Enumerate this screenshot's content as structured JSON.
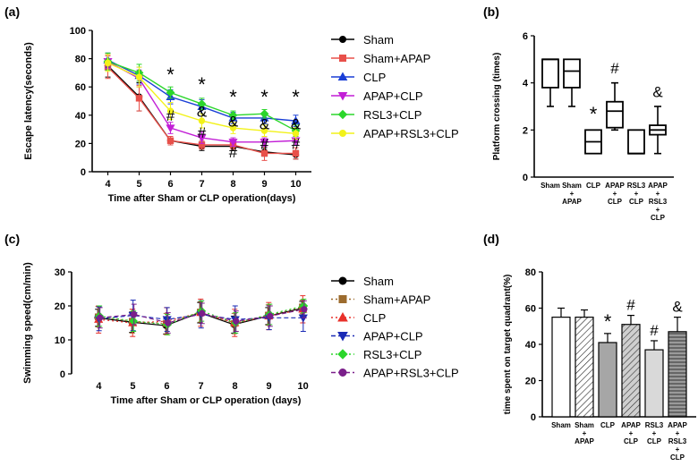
{
  "chart_data": [
    {
      "panel": "(a)",
      "type": "line",
      "xlabel": "Time after Sham or CLP operation(days)",
      "ylabel": "Escape latency(seconds)",
      "xlim": [
        3.5,
        10.5
      ],
      "ylim": [
        0,
        100
      ],
      "x": [
        4,
        5,
        6,
        7,
        8,
        9,
        10
      ],
      "yticks": [
        0,
        20,
        40,
        60,
        80,
        100
      ],
      "series": [
        {
          "name": "Sham",
          "color": "#000000",
          "marker": "circle",
          "values": [
            75,
            53,
            22,
            18,
            18,
            14,
            12
          ],
          "errors": [
            8,
            10,
            3,
            3,
            3,
            3,
            3
          ]
        },
        {
          "name": "Sham+APAP",
          "color": "#e8504a",
          "marker": "square",
          "values": [
            74,
            52,
            22,
            19,
            19,
            13,
            13
          ],
          "errors": [
            8,
            9,
            3,
            3,
            3,
            5,
            4
          ]
        },
        {
          "name": "CLP",
          "color": "#1a3fd6",
          "marker": "triangle-up",
          "values": [
            79,
            68,
            53,
            46,
            38,
            38,
            36
          ],
          "errors": [
            5,
            6,
            5,
            5,
            4,
            4,
            4
          ]
        },
        {
          "name": "APAP+CLP",
          "color": "#c21fd6",
          "marker": "triangle-down",
          "values": [
            78,
            66,
            31,
            24,
            21,
            21,
            22
          ],
          "errors": [
            5,
            6,
            4,
            4,
            3,
            3,
            3
          ]
        },
        {
          "name": "RSL3+CLP",
          "color": "#2bd62b",
          "marker": "diamond",
          "values": [
            78,
            70,
            56,
            48,
            40,
            41,
            29
          ],
          "errors": [
            6,
            6,
            4,
            4,
            3,
            3,
            4
          ]
        },
        {
          "name": "APAP+RSL3+CLP",
          "color": "#f2f21a",
          "marker": "circle",
          "values": [
            77,
            67,
            43,
            36,
            31,
            29,
            27
          ],
          "errors": [
            6,
            7,
            6,
            5,
            4,
            4,
            4
          ]
        }
      ],
      "annotations": [
        {
          "text": "*",
          "x": 6,
          "y": 64
        },
        {
          "text": "*",
          "x": 7,
          "y": 57
        },
        {
          "text": "*",
          "x": 8,
          "y": 48
        },
        {
          "text": "*",
          "x": 9,
          "y": 48
        },
        {
          "text": "*",
          "x": 10,
          "y": 48
        },
        {
          "text": "#",
          "x": 6,
          "y": 36
        },
        {
          "text": "&",
          "x": 7,
          "y": 39
        },
        {
          "text": "#",
          "x": 7,
          "y": 24
        },
        {
          "text": "&",
          "x": 8,
          "y": 32
        },
        {
          "text": "#",
          "x": 8,
          "y": 10
        },
        {
          "text": "&",
          "x": 9,
          "y": 30
        },
        {
          "text": "#",
          "x": 9,
          "y": 16
        },
        {
          "text": "&",
          "x": 10,
          "y": 30
        },
        {
          "text": "#",
          "x": 10,
          "y": 16
        }
      ],
      "legend": "right"
    },
    {
      "panel": "(b)",
      "type": "box",
      "ylabel": "Platform crossing (times)",
      "ylim": [
        0,
        6
      ],
      "yticks": [
        0,
        2,
        4,
        6
      ],
      "categories": [
        "Sham",
        "Sham + APAP",
        "CLP",
        "APAP + CLP",
        "RSL3 + CLP",
        "APAP + RSL3 + CLP"
      ],
      "category_lines": [
        [
          "Sham"
        ],
        [
          "Sham",
          "+",
          "APAP"
        ],
        [
          "CLP"
        ],
        [
          "APAP",
          "+",
          "CLP"
        ],
        [
          "RSL3",
          "+",
          "CLP"
        ],
        [
          "APAP",
          "+",
          "RSL3",
          "+",
          "CLP"
        ]
      ],
      "boxes": [
        {
          "min": 3,
          "q1": 3.8,
          "median": 5,
          "q3": 5,
          "max": 5
        },
        {
          "min": 3,
          "q1": 3.8,
          "median": 4.5,
          "q3": 5,
          "max": 5
        },
        {
          "min": 1,
          "q1": 1,
          "median": 1.5,
          "q3": 2,
          "max": 2
        },
        {
          "min": 2,
          "q1": 2.1,
          "median": 2.8,
          "q3": 3.2,
          "max": 4
        },
        {
          "min": 1,
          "q1": 1,
          "median": 1,
          "q3": 2,
          "max": 2
        },
        {
          "min": 1,
          "q1": 1.8,
          "median": 2,
          "q3": 2.2,
          "max": 3
        }
      ],
      "annotations": [
        {
          "text": "*",
          "category": 2,
          "y": 2.4
        },
        {
          "text": "#",
          "category": 3,
          "y": 4.4
        },
        {
          "text": "&",
          "category": 5,
          "y": 3.4
        }
      ]
    },
    {
      "panel": "(c)",
      "type": "line",
      "xlabel": "Time after Sham or CLP operation (days)",
      "ylabel": "Swimming speed(cm/min)",
      "xlim": [
        3.2,
        10.3
      ],
      "ylim": [
        0,
        30
      ],
      "x": [
        4,
        5,
        6,
        7,
        8,
        9,
        10
      ],
      "yticks": [
        0,
        10,
        20,
        30
      ],
      "series": [
        {
          "name": "Sham",
          "color": "#000000",
          "marker": "circle",
          "line": "solid",
          "values": [
            16.5,
            15.2,
            14.2,
            18.0,
            14.5,
            17.0,
            19.3
          ],
          "errors": [
            2.5,
            3,
            2.5,
            3,
            2.5,
            2.5,
            2
          ]
        },
        {
          "name": "Sham+APAP",
          "color": "#9c6b2e",
          "marker": "square",
          "line": "dotted",
          "values": [
            16.8,
            15.5,
            14.8,
            18.2,
            14.8,
            17.3,
            19.7
          ],
          "errors": [
            3,
            3.5,
            3,
            3,
            3,
            3,
            2
          ]
        },
        {
          "name": "CLP",
          "color": "#e8302a",
          "marker": "triangle-up",
          "line": "dotted",
          "values": [
            16.0,
            15.0,
            15.5,
            18.0,
            15.0,
            17.0,
            19.0
          ],
          "errors": [
            4,
            4,
            4,
            4,
            4,
            4,
            4
          ]
        },
        {
          "name": "APAP+CLP",
          "color": "#1a2ab5",
          "marker": "triangle-down",
          "line": "dashed",
          "values": [
            16.2,
            17.2,
            16.0,
            17.5,
            16.0,
            16.5,
            16.5
          ],
          "errors": [
            3.5,
            4.5,
            3.5,
            4,
            4,
            3.5,
            4
          ]
        },
        {
          "name": "RSL3+CLP",
          "color": "#2bd62b",
          "marker": "diamond",
          "line": "dotted",
          "values": [
            17.0,
            15.5,
            14.5,
            18.5,
            15.0,
            17.5,
            20.0
          ],
          "errors": [
            3,
            3,
            3,
            3,
            3,
            3,
            2
          ]
        },
        {
          "name": "APAP+RSL3+CLP",
          "color": "#7a1f8a",
          "marker": "circle",
          "line": "dashed",
          "values": [
            16.5,
            17.5,
            15.0,
            17.8,
            15.5,
            17.0,
            19.0
          ],
          "errors": [
            3,
            3,
            3,
            3,
            3,
            3,
            2.5
          ]
        }
      ],
      "legend": "right"
    },
    {
      "panel": "(d)",
      "type": "bar",
      "ylabel": "time spent on target quadrant(%)",
      "ylim": [
        0,
        80
      ],
      "yticks": [
        0,
        20,
        40,
        60,
        80
      ],
      "categories": [
        "Sham",
        "Sham + APAP",
        "CLP",
        "APAP + CLP",
        "RSL3 + CLP",
        "APAP + RSL3 + CLP"
      ],
      "category_lines": [
        [
          "Sham"
        ],
        [
          "Sham",
          "+",
          "APAP"
        ],
        [
          "CLP"
        ],
        [
          "APAP",
          "+",
          "CLP"
        ],
        [
          "RSL3",
          "+",
          "CLP"
        ],
        [
          "APAP",
          "+",
          "RSL3",
          "+",
          "CLP"
        ]
      ],
      "values": [
        55,
        55,
        41,
        51,
        37,
        47
      ],
      "errors": [
        5,
        4,
        5,
        5,
        5,
        8
      ],
      "fills": [
        "#ffffff",
        "hatch",
        "#a6a6a6",
        "hatch-gray",
        "#d9d9d9",
        "stripe"
      ],
      "annotations": [
        {
          "text": "*",
          "category": 2,
          "y": 49
        },
        {
          "text": "#",
          "category": 3,
          "y": 59
        },
        {
          "text": "#",
          "category": 4,
          "y": 45
        },
        {
          "text": "&",
          "category": 5,
          "y": 58
        }
      ]
    }
  ]
}
